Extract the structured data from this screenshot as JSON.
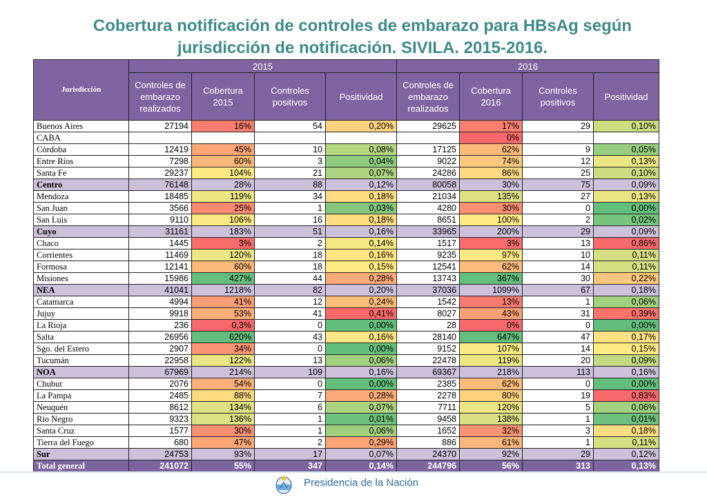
{
  "title_line1": "Cobertura notificación de controles de embarazo para HBsAg según",
  "title_line2": "jurisdicción de notificación. SIVILA. 2015-2016.",
  "headers": {
    "jurisdiccion": "Jurisdicción",
    "year1": "2015",
    "year2": "2016",
    "controles_realizados": "Controles de embarazo realizados",
    "cobertura_2015": "Cobertura 2015",
    "cobertura_2016": "Cobertura 2016",
    "controles_positivos": "Controles positivos",
    "positividad": "Positividad"
  },
  "colors": {
    "header_purple": "#8064a2",
    "region_lavender": "#ccc0da",
    "total_purple": "#7f659f",
    "scale_red": "#f8696b",
    "scale_yellow": "#ffeb84",
    "scale_green": "#63be7b",
    "title_teal": "#3d8a8a"
  },
  "rows": [
    {
      "j": "Buenos Aires",
      "type": "normal",
      "c15": "27194",
      "cob15": "16%",
      "p15": "54",
      "pos15": "0,20%",
      "c16": "29625",
      "cob16": "17%",
      "p16": "29",
      "pos16": "0,10%"
    },
    {
      "j": "CABA",
      "type": "normal",
      "c15": "",
      "cob15": "",
      "p15": "",
      "pos15": "",
      "c16": "",
      "cob16": "0%",
      "p16": "",
      "pos16": ""
    },
    {
      "j": "Córdoba",
      "type": "normal",
      "c15": "12419",
      "cob15": "45%",
      "p15": "10",
      "pos15": "0,08%",
      "c16": "17125",
      "cob16": "62%",
      "p16": "9",
      "pos16": "0,05%"
    },
    {
      "j": "Entre Ríos",
      "type": "normal",
      "c15": "7298",
      "cob15": "60%",
      "p15": "3",
      "pos15": "0,04%",
      "c16": "9022",
      "cob16": "74%",
      "p16": "12",
      "pos16": "0,13%"
    },
    {
      "j": "Santa Fe",
      "type": "normal",
      "c15": "29237",
      "cob15": "104%",
      "p15": "21",
      "pos15": "0,07%",
      "c16": "24286",
      "cob16": "86%",
      "p16": "25",
      "pos16": "0,10%"
    },
    {
      "j": "Centro",
      "type": "region",
      "c15": "76148",
      "cob15": "28%",
      "p15": "88",
      "pos15": "0,12%",
      "c16": "80058",
      "cob16": "30%",
      "p16": "75",
      "pos16": "0,09%"
    },
    {
      "j": "Mendoza",
      "type": "normal",
      "c15": "18485",
      "cob15": "119%",
      "p15": "34",
      "pos15": "0,18%",
      "c16": "21034",
      "cob16": "135%",
      "p16": "27",
      "pos16": "0,13%"
    },
    {
      "j": "San Juan",
      "type": "normal",
      "c15": "3566",
      "cob15": "25%",
      "p15": "1",
      "pos15": "0,03%",
      "c16": "4280",
      "cob16": "30%",
      "p16": "0",
      "pos16": "0,00%"
    },
    {
      "j": "San Luis",
      "type": "normal",
      "c15": "9110",
      "cob15": "106%",
      "p15": "16",
      "pos15": "0,18%",
      "c16": "8651",
      "cob16": "100%",
      "p16": "2",
      "pos16": "0,02%"
    },
    {
      "j": "Cuyo",
      "type": "region",
      "c15": "31161",
      "cob15": "183%",
      "p15": "51",
      "pos15": "0,16%",
      "c16": "33965",
      "cob16": "200%",
      "p16": "29",
      "pos16": "0,09%"
    },
    {
      "j": "Chaco",
      "type": "normal",
      "c15": "1445",
      "cob15": "3%",
      "p15": "2",
      "pos15": "0,14%",
      "c16": "1517",
      "cob16": "3%",
      "p16": "13",
      "pos16": "0,86%"
    },
    {
      "j": "Corrientes",
      "type": "normal",
      "c15": "11469",
      "cob15": "120%",
      "p15": "18",
      "pos15": "0,16%",
      "c16": "9235",
      "cob16": "97%",
      "p16": "10",
      "pos16": "0,11%"
    },
    {
      "j": "Formosa",
      "type": "normal",
      "c15": "12141",
      "cob15": "60%",
      "p15": "18",
      "pos15": "0,15%",
      "c16": "12541",
      "cob16": "62%",
      "p16": "14",
      "pos16": "0,11%"
    },
    {
      "j": "Misiones",
      "type": "normal",
      "c15": "15986",
      "cob15": "427%",
      "p15": "44",
      "pos15": "0,28%",
      "c16": "13743",
      "cob16": "367%",
      "p16": "30",
      "pos16": "0,22%"
    },
    {
      "j": "NEA",
      "type": "region",
      "c15": "41041",
      "cob15": "1218%",
      "p15": "82",
      "pos15": "0,20%",
      "c16": "37036",
      "cob16": "1099%",
      "p16": "67",
      "pos16": "0,18%"
    },
    {
      "j": "Catamarca",
      "type": "normal",
      "c15": "4994",
      "cob15": "41%",
      "p15": "12",
      "pos15": "0,24%",
      "c16": "1542",
      "cob16": "13%",
      "p16": "1",
      "pos16": "0,06%"
    },
    {
      "j": "Jujuy",
      "type": "normal",
      "c15": "9918",
      "cob15": "53%",
      "p15": "41",
      "pos15": "0,41%",
      "c16": "8027",
      "cob16": "43%",
      "p16": "31",
      "pos16": "0,39%"
    },
    {
      "j": "La Rioja",
      "type": "normal",
      "c15": "236",
      "cob15": "0,3%",
      "p15": "0",
      "pos15": "0,00%",
      "c16": "28",
      "cob16": "0%",
      "p16": "0",
      "pos16": "0,00%"
    },
    {
      "j": "Salta",
      "type": "normal",
      "c15": "26956",
      "cob15": "620%",
      "p15": "43",
      "pos15": "0,16%",
      "c16": "28140",
      "cob16": "647%",
      "p16": "47",
      "pos16": "0,17%"
    },
    {
      "j": "Sgo. del Estero",
      "type": "normal",
      "c15": "2907",
      "cob15": "34%",
      "p15": "0",
      "pos15": "0,00%",
      "c16": "9152",
      "cob16": "107%",
      "p16": "14",
      "pos16": "0,15%"
    },
    {
      "j": "Tucumán",
      "type": "normal",
      "c15": "22958",
      "cob15": "122%",
      "p15": "13",
      "pos15": "0,06%",
      "c16": "22478",
      "cob16": "119%",
      "p16": "20",
      "pos16": "0,09%"
    },
    {
      "j": "NOA",
      "type": "region",
      "c15": "67969",
      "cob15": "214%",
      "p15": "109",
      "pos15": "0,16%",
      "c16": "69367",
      "cob16": "218%",
      "p16": "113",
      "pos16": "0,16%"
    },
    {
      "j": "Chubut",
      "type": "normal",
      "c15": "2076",
      "cob15": "54%",
      "p15": "0",
      "pos15": "0,00%",
      "c16": "2385",
      "cob16": "62%",
      "p16": "0",
      "pos16": "0,00%"
    },
    {
      "j": "La Pampa",
      "type": "normal",
      "c15": "2485",
      "cob15": "88%",
      "p15": "7",
      "pos15": "0,28%",
      "c16": "2278",
      "cob16": "80%",
      "p16": "19",
      "pos16": "0,83%"
    },
    {
      "j": "Neuquén",
      "type": "normal",
      "c15": "8612",
      "cob15": "134%",
      "p15": "6",
      "pos15": "0,07%",
      "c16": "7711",
      "cob16": "120%",
      "p16": "5",
      "pos16": "0,06%"
    },
    {
      "j": "Río Negro",
      "type": "normal",
      "c15": "9323",
      "cob15": "136%",
      "p15": "1",
      "pos15": "0,01%",
      "c16": "9458",
      "cob16": "138%",
      "p16": "1",
      "pos16": "0,01%"
    },
    {
      "j": "Santa Cruz",
      "type": "normal",
      "c15": "1577",
      "cob15": "30%",
      "p15": "1",
      "pos15": "0,06%",
      "c16": "1652",
      "cob16": "32%",
      "p16": "3",
      "pos16": "0,18%"
    },
    {
      "j": "Tierra del Fuego",
      "type": "normal",
      "c15": "680",
      "cob15": "47%",
      "p15": "2",
      "pos15": "0,29%",
      "c16": "886",
      "cob16": "61%",
      "p16": "1",
      "pos16": "0,11%"
    },
    {
      "j": "Sur",
      "type": "region",
      "c15": "24753",
      "cob15": "93%",
      "p15": "17",
      "pos15": "0,07%",
      "c16": "24370",
      "cob16": "92%",
      "p16": "29",
      "pos16": "0,12%"
    },
    {
      "j": "Total general",
      "type": "total",
      "c15": "241072",
      "cob15": "55%",
      "p15": "347",
      "pos15": "0,14%",
      "c16": "244796",
      "cob16": "56%",
      "p16": "313",
      "pos16": "0,13%"
    }
  ],
  "footer": {
    "text": "Presidencia de la Nación",
    "logo_icon": "argentina-coat-of-arms-icon"
  }
}
